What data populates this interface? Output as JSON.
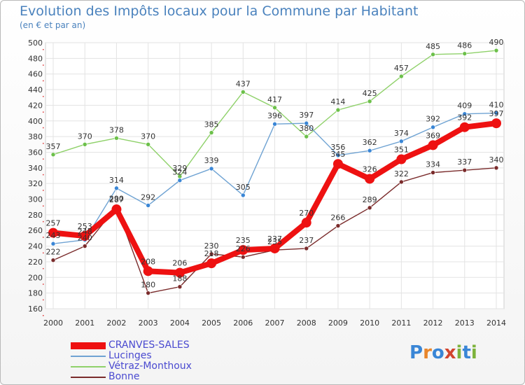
{
  "title": "Evolution des Impôts locaux pour la Commune par Habitant",
  "subtitle": "(en € et par an)",
  "logo": [
    "P",
    "r",
    "o",
    "x",
    "i",
    "t",
    "i"
  ],
  "logo_colors": [
    "#3a86d6",
    "#e8862c",
    "#3a86d6",
    "#d2452f",
    "#7db33c",
    "#3a86d6",
    "#7db33c"
  ],
  "chart_data": {
    "type": "line",
    "title": "Evolution des Impôts locaux pour la Commune par Habitant",
    "subtitle": "(en € et par an)",
    "x": [
      2000,
      2001,
      2002,
      2003,
      2004,
      2005,
      2006,
      2007,
      2008,
      2009,
      2010,
      2011,
      2012,
      2013,
      2014
    ],
    "xtick_labels": [
      "2000",
      "2001",
      "2002",
      "2003",
      "2004",
      "2005",
      "2006",
      "2007",
      "2008",
      "2009",
      "2010",
      "2011",
      "2012",
      "2013",
      "2014"
    ],
    "ylim": [
      160,
      500
    ],
    "yticks": [
      160,
      180,
      200,
      220,
      240,
      260,
      280,
      300,
      320,
      340,
      360,
      380,
      400,
      420,
      440,
      460,
      480,
      500
    ],
    "grid": true,
    "legend_position": "bottom-left",
    "series": [
      {
        "name": "Vétraz-Monthoux",
        "color": "#8fd16a",
        "marker": "#6cc04a",
        "values": [
          357,
          370,
          378,
          370,
          329,
          385,
          437,
          417,
          380,
          414,
          425,
          457,
          485,
          486,
          490
        ]
      },
      {
        "name": "Lucinges",
        "color": "#6fa3d3",
        "marker": "#3a86d6",
        "values": [
          243,
          248,
          314,
          292,
          324,
          339,
          305,
          396,
          397,
          356,
          362,
          374,
          392,
          409,
          410
        ]
      },
      {
        "name": "Bonne",
        "color": "#7a2b2b",
        "marker": "#7a2b2b",
        "values": [
          222,
          240,
          290,
          180,
          188,
          230,
          226,
          235,
          237,
          266,
          289,
          322,
          334,
          337,
          340
        ]
      },
      {
        "name": "CRANVES-SALES",
        "color": "#ee1111",
        "marker": "#ee1111",
        "values": [
          257,
          253,
          287,
          208,
          206,
          218,
          235,
          237,
          270,
          345,
          326,
          351,
          369,
          392,
          397
        ]
      }
    ]
  },
  "legend_order": [
    "CRANVES-SALES",
    "Lucinges",
    "Vétraz-Monthoux",
    "Bonne"
  ]
}
